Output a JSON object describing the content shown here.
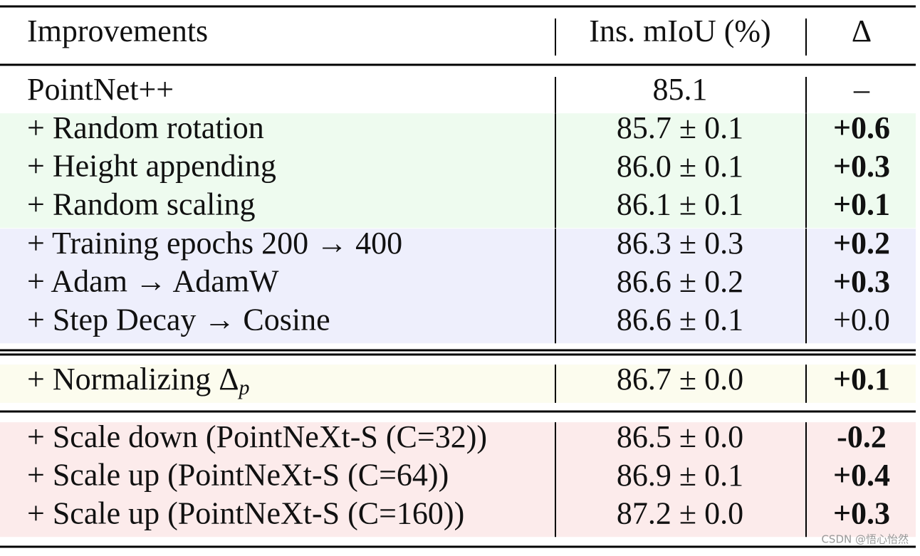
{
  "table": {
    "header": [
      "Improvements",
      "Ins. mIoU (%)",
      "Δ"
    ],
    "sections": [
      {
        "color": "#ffffff",
        "rows": [
          {
            "label": "PointNet++",
            "miou": "85.1",
            "delta": "–",
            "bold": false
          }
        ]
      },
      {
        "color": "#eefbef",
        "rows": [
          {
            "label": "+ Random rotation",
            "miou": "85.7 ± 0.1",
            "delta": "+0.6",
            "bold": true
          },
          {
            "label": "+ Height appending",
            "miou": "86.0 ± 0.1",
            "delta": "+0.3",
            "bold": true
          },
          {
            "label": "+ Random scaling",
            "miou": "86.1 ± 0.1",
            "delta": "+0.1",
            "bold": true
          }
        ]
      },
      {
        "color": "#eeeffc",
        "rows": [
          {
            "label": "+ Training epochs 200 → 400",
            "miou": "86.3 ± 0.3",
            "delta": "+0.2",
            "bold": true
          },
          {
            "label": "+ Adam → AdamW",
            "miou": "86.6 ± 0.2",
            "delta": "+0.3",
            "bold": true
          },
          {
            "label": "+ Step Decay → Cosine",
            "miou": "86.6 ± 0.1",
            "delta": "+0.0",
            "bold": false
          }
        ]
      },
      {
        "color": "#fcfcee",
        "rows": [
          {
            "label": "+ Normalizing Δ",
            "subscript": "p",
            "miou": "86.7 ± 0.0",
            "delta": "+0.1",
            "bold": true
          }
        ]
      },
      {
        "color": "#fcebeb",
        "rows": [
          {
            "label": "+ Scale down (PointNeXt-S (C=32))",
            "miou": "86.5 ± 0.0",
            "delta": "-0.2",
            "bold": true
          },
          {
            "label": "+ Scale up (PointNeXt-S (C=64))",
            "miou": "86.9 ± 0.1",
            "delta": "+0.4",
            "bold": true
          },
          {
            "label": "+ Scale up (PointNeXt-S (C=160))",
            "miou": "87.2 ± 0.0",
            "delta": "+0.3",
            "bold": true
          }
        ]
      }
    ]
  },
  "watermark": "CSDN @悟心怡然"
}
